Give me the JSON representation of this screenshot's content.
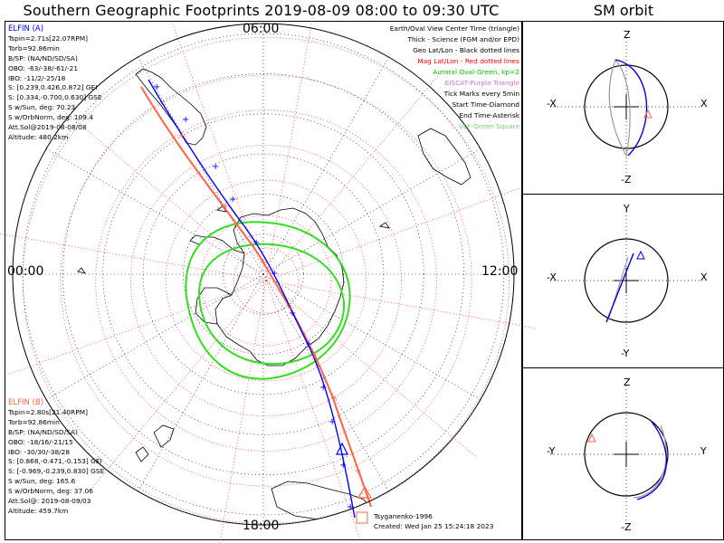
{
  "title": "Southern Geographic Footprints 2019-08-09 08:00 to 09:30 UTC",
  "sm_title": "SM orbit",
  "local_time_labels": {
    "top": "06:00",
    "left": "00:00",
    "right": "12:00",
    "bottom": "18:00"
  },
  "elfin_a": {
    "name": "ELFIN (A)",
    "color": "#0000ff",
    "lines": [
      "Tspin=2.71s[22.07RPM]",
      "Torb=92.86min",
      "B/SP: (NA/ND/SD/SA)",
      "OBO: -63/-38/-61/-21",
      "IBO: -11/2/-25/18",
      "S: [0.239,0.426,0.872] GEI",
      "S: [0.334,-0.700,0.630] GSE",
      "S w/Sun, deg: 70.23",
      "S w/OrbNorm, deg: 109.4",
      "Att.Sol@2019-08-08/08",
      "Altitude: 480.2km"
    ]
  },
  "elfin_b": {
    "name": "ELFIN (B)",
    "color": "#ff6347",
    "lines": [
      "Tspin=2.80s[21.40RPM]",
      "Torb=92.86min",
      "B/SP: (NA/ND/SD/SA)",
      "OBO: -18/16/-21/15",
      "IBO: -30/30/-38/28",
      "S: [0.868,-0.471,-0.153] GEI",
      "S: [-0.969,-0.239,0.830] GSE",
      "S w/Sun, deg: 165.6",
      "S w/OrbNorm, deg: 37.06",
      "Att.Sol@: 2019-08-09/03",
      "Altitude: 459.7km"
    ]
  },
  "legend": [
    {
      "text": "Earth/Oval View Center Time (triangle)",
      "color": "#000000"
    },
    {
      "text": "Thick - Science (FGM and/or EPD)",
      "color": "#000000"
    },
    {
      "text": "Geo Lat/Lon - Black dotted lines",
      "color": "#000000"
    },
    {
      "text": "Mag Lat/Lon - Red dotted lines",
      "color": "#ff0000"
    },
    {
      "text": "Auroral Oval-Green, kp=2",
      "color": "#00c000"
    },
    {
      "text": "EISCAT-Purple Triangle",
      "color": "#d070d0"
    },
    {
      "text": "Tick Marks every 5min",
      "color": "#000000"
    },
    {
      "text": "Start Time-Diamond",
      "color": "#000000"
    },
    {
      "text": "End Time-Asterisk",
      "color": "#000000"
    },
    {
      "text": "VLF-Green Square",
      "color": "#70d070"
    }
  ],
  "credit": {
    "line1": "Tsyganenko-1996",
    "line2": "Created: Wed Jan 25 15:24:18 2023"
  },
  "sm_panels": [
    {
      "top": "Z",
      "bottom": "-Z",
      "left": "-X",
      "right": "X"
    },
    {
      "top": "Y",
      "bottom": "-Y",
      "left": "-X",
      "right": "X"
    },
    {
      "top": "Z",
      "bottom": "-Z",
      "left": "-Y",
      "right": "Y"
    }
  ],
  "chart_data": {
    "type": "polar-map",
    "projection": "southern polar stereographic",
    "series": [
      {
        "name": "ELFIN (A)",
        "color": "#0000ff"
      },
      {
        "name": "ELFIN (B)",
        "color": "#ff6347"
      }
    ]
  }
}
